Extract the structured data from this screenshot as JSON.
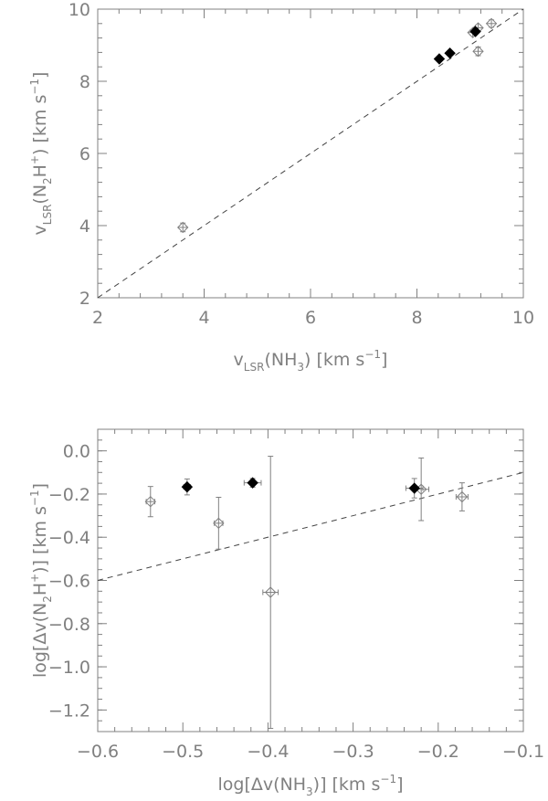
{
  "chart_data": [
    {
      "type": "scatter",
      "xlabel": {
        "base": "v",
        "sub": "LSR",
        "rest": "(NH",
        "sub2": "3",
        "close": ")  [km s",
        "sup": "−1",
        "end": "]"
      },
      "ylabel": {
        "base": "v",
        "sub": "LSR",
        "rest": "(N",
        "sub2": "2",
        "mid": "H",
        "sup": "+",
        "close": ")  [km s",
        "sup2": "−1",
        "end": "]"
      },
      "xlim": [
        2,
        10
      ],
      "ylim": [
        2,
        10
      ],
      "xticks": [
        "2",
        "4",
        "6",
        "8",
        "10"
      ],
      "yticks": [
        "2",
        "4",
        "6",
        "8",
        "10"
      ],
      "fit_line": [
        [
          2,
          2
        ],
        [
          10,
          10
        ]
      ],
      "series": [
        {
          "marker": "open-diamond",
          "points": [
            {
              "x": 3.6,
              "y": 3.95,
              "xerr": 0.03,
              "yerr": 0.12
            },
            {
              "x": 9.05,
              "y": 9.35,
              "xerr": 0.05,
              "yerr": 0.08
            },
            {
              "x": 9.15,
              "y": 9.48,
              "xerr": 0.05,
              "yerr": 0.08
            },
            {
              "x": 9.4,
              "y": 9.6,
              "xerr": 0.05,
              "yerr": 0.1
            },
            {
              "x": 9.15,
              "y": 8.83,
              "xerr": 0.05,
              "yerr": 0.12
            }
          ]
        },
        {
          "marker": "filled-diamond",
          "points": [
            {
              "x": 8.42,
              "y": 8.62,
              "xerr": 0.03,
              "yerr": 0.04
            },
            {
              "x": 8.62,
              "y": 8.78,
              "xerr": 0.03,
              "yerr": 0.04
            },
            {
              "x": 9.1,
              "y": 9.38,
              "xerr": 0.03,
              "yerr": 0.06
            }
          ]
        }
      ]
    },
    {
      "type": "scatter",
      "xlabel": {
        "base": "log[Δv(NH",
        "sub": "3",
        "rest": ")]  [km s",
        "sup": "−1",
        "end": "]"
      },
      "ylabel": {
        "base": "log[Δv(N",
        "sub": "2",
        "mid": "H",
        "sup": "+",
        "rest": ")]  [km s",
        "sup2": "−1",
        "end": "]"
      },
      "xlim": [
        -0.6,
        -0.1
      ],
      "ylim": [
        -1.3,
        0.1
      ],
      "xticks": [
        "−0.6",
        "−0.5",
        "−0.4",
        "−0.3",
        "−0.2",
        "−0.1"
      ],
      "yticks": [
        "−1.2",
        "−1.0",
        "−0.8",
        "−0.6",
        "−0.4",
        "−0.2",
        "0.0"
      ],
      "fit_line": [
        [
          -0.6,
          -0.6
        ],
        [
          -0.1,
          -0.1
        ]
      ],
      "series": [
        {
          "marker": "open-diamond",
          "points": [
            {
              "x": -0.538,
              "y": -0.235,
              "xerr": 0.005,
              "yerr": 0.07
            },
            {
              "x": -0.458,
              "y": -0.335,
              "xerr": 0.005,
              "yerr": 0.12
            },
            {
              "x": -0.397,
              "y": -0.655,
              "xerr": 0.009,
              "yerr": 0.63
            },
            {
              "x": -0.22,
              "y": -0.178,
              "xerr": 0.009,
              "yerr": 0.145
            },
            {
              "x": -0.172,
              "y": -0.213,
              "xerr": 0.007,
              "yerr": 0.065
            }
          ]
        },
        {
          "marker": "filled-diamond",
          "points": [
            {
              "x": -0.495,
              "y": -0.167,
              "xerr": 0.004,
              "yerr": 0.037
            },
            {
              "x": -0.418,
              "y": -0.148,
              "xerr": 0.01,
              "yerr": 0.02
            },
            {
              "x": -0.228,
              "y": -0.173,
              "xerr": 0.01,
              "yerr": 0.045
            }
          ]
        }
      ]
    }
  ]
}
